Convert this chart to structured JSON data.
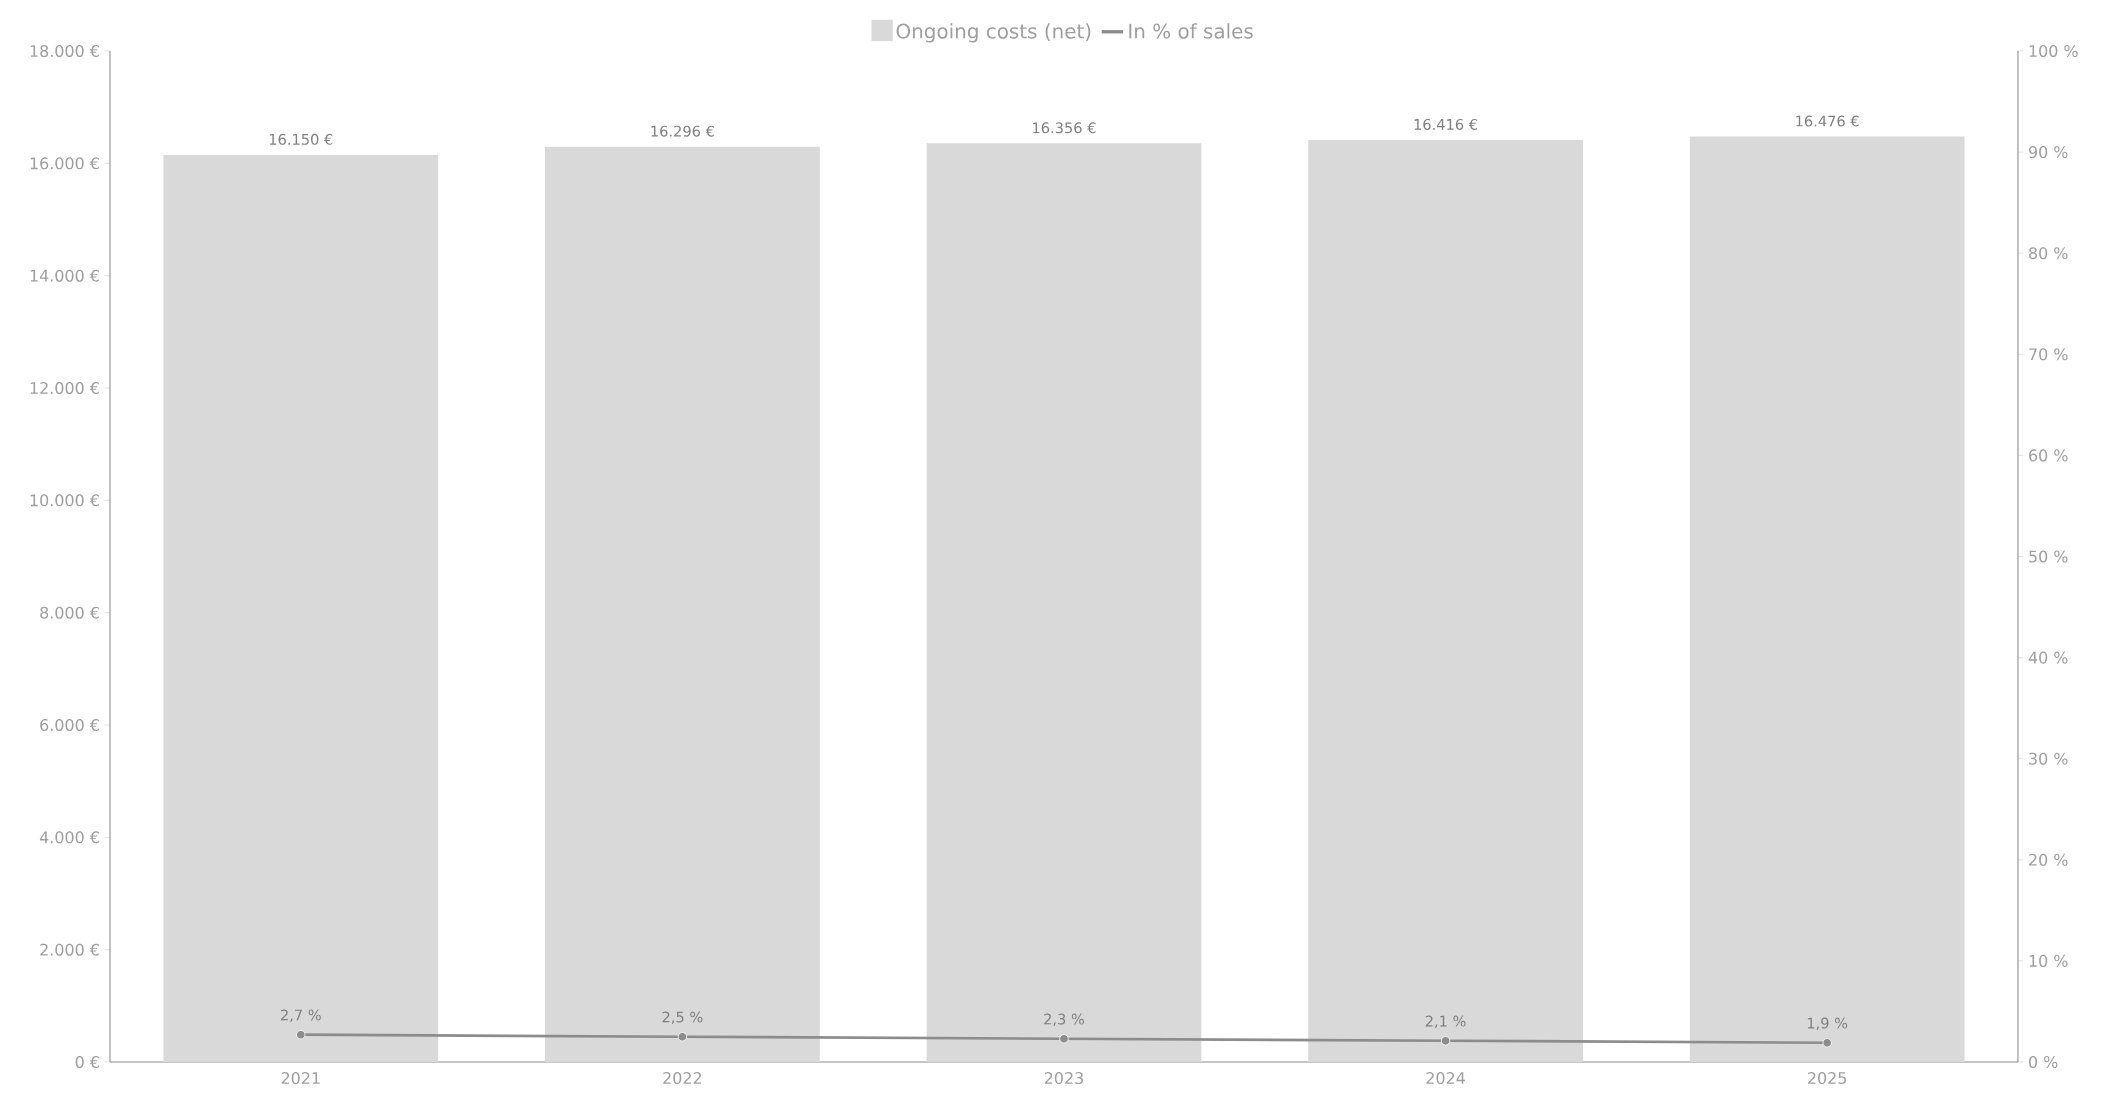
{
  "chart_data": {
    "type": "bar",
    "categories": [
      "2021",
      "2022",
      "2023",
      "2024",
      "2025"
    ],
    "series": [
      {
        "name": "Ongoing costs (net)",
        "color": "#d9d9d9",
        "values": [
          16150,
          16296,
          16356,
          16416,
          16476
        ],
        "value_labels": [
          "16.150 €",
          "16.296 €",
          "16.356 €",
          "16.416 €",
          "16.476 €"
        ]
      },
      {
        "name": "In % of sales",
        "type": "line",
        "axis": "y2",
        "color": "#8c8c8c",
        "marker": "circle",
        "values": [
          2.7,
          2.5,
          2.3,
          2.1,
          1.9
        ],
        "value_labels": [
          "2,7 %",
          "2,5 %",
          "2,3 %",
          "2,1 %",
          "1,9 %"
        ]
      }
    ],
    "ylim": [
      0,
      18000
    ],
    "yticks": [
      {
        "value": 0,
        "label": "0 €"
      },
      {
        "value": 2000,
        "label": "2.000 €"
      },
      {
        "value": 4000,
        "label": "4.000 €"
      },
      {
        "value": 6000,
        "label": "6.000 €"
      },
      {
        "value": 8000,
        "label": "8.000 €"
      },
      {
        "value": 10000,
        "label": "10.000 €"
      },
      {
        "value": 12000,
        "label": "12.000 €"
      },
      {
        "value": 14000,
        "label": "14.000 €"
      },
      {
        "value": 16000,
        "label": "16.000 €"
      },
      {
        "value": 18000,
        "label": "18.000 €"
      }
    ],
    "y2lim": [
      0,
      100
    ],
    "y2ticks": [
      {
        "value": 0,
        "label": "0 %"
      },
      {
        "value": 10,
        "label": "10 %"
      },
      {
        "value": 20,
        "label": "20 %"
      },
      {
        "value": 30,
        "label": "30 %"
      },
      {
        "value": 40,
        "label": "40 %"
      },
      {
        "value": 50,
        "label": "50 %"
      },
      {
        "value": 60,
        "label": "60 %"
      },
      {
        "value": 70,
        "label": "70 %"
      },
      {
        "value": 80,
        "label": "80 %"
      },
      {
        "value": 90,
        "label": "90 %"
      },
      {
        "value": 100,
        "label": "100 %"
      }
    ],
    "legend": "top",
    "grid": false
  }
}
